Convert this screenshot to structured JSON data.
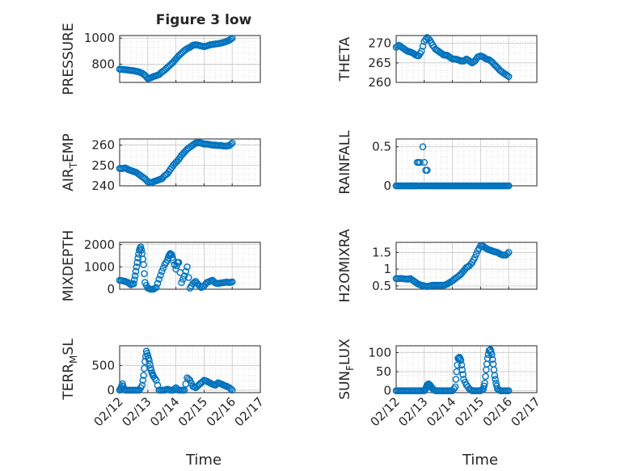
{
  "figure": {
    "title": "Figure 3 low",
    "xlabel_left": "Time",
    "xlabel_right": "Time",
    "x_tick_labels": [
      "02/12",
      "02/13",
      "02/14",
      "02/15",
      "02/16",
      "02/17"
    ]
  },
  "colors": {
    "marker": "#0072BD",
    "grid": "#d0d0d0",
    "axis": "#262626",
    "background": "#ffffff"
  },
  "chart_data": [
    {
      "id": "pressure",
      "type": "scatter",
      "ylabel": "PRESSURE",
      "xlim": [
        0,
        5
      ],
      "ylim": [
        660,
        1020
      ],
      "yticks": [
        800,
        1000
      ],
      "grid": true,
      "x": [
        0.0,
        0.1,
        0.2,
        0.3,
        0.4,
        0.5,
        0.6,
        0.7,
        0.8,
        0.9,
        1.0,
        1.1,
        1.2,
        1.3,
        1.4,
        1.5,
        1.6,
        1.7,
        1.8,
        1.9,
        2.0,
        2.1,
        2.2,
        2.3,
        2.4,
        2.5,
        2.6,
        2.7,
        2.8,
        2.9,
        3.0,
        3.1,
        3.2,
        3.3,
        3.4,
        3.5,
        3.6,
        3.7,
        3.8,
        3.9,
        4.0
      ],
      "y": [
        762,
        760,
        758,
        755,
        752,
        750,
        745,
        740,
        730,
        715,
        690,
        695,
        705,
        712,
        720,
        740,
        755,
        775,
        795,
        815,
        840,
        865,
        885,
        905,
        920,
        930,
        945,
        950,
        945,
        940,
        935,
        940,
        948,
        952,
        955,
        958,
        962,
        968,
        975,
        985,
        1000
      ]
    },
    {
      "id": "theta",
      "type": "scatter",
      "ylabel": "THETA",
      "xlim": [
        0,
        5
      ],
      "ylim": [
        260,
        272
      ],
      "yticks": [
        260,
        265,
        270
      ],
      "grid": true,
      "x": [
        0.0,
        0.1,
        0.2,
        0.3,
        0.4,
        0.5,
        0.6,
        0.7,
        0.8,
        0.9,
        1.0,
        1.1,
        1.2,
        1.3,
        1.4,
        1.5,
        1.6,
        1.7,
        1.8,
        1.9,
        2.0,
        2.1,
        2.2,
        2.3,
        2.4,
        2.5,
        2.6,
        2.7,
        2.8,
        2.9,
        3.0,
        3.1,
        3.2,
        3.3,
        3.4,
        3.5,
        3.6,
        3.7,
        3.8,
        3.9,
        4.0
      ],
      "y": [
        269,
        269.5,
        269,
        268.5,
        268,
        267.8,
        267.5,
        267,
        266.8,
        268,
        270.5,
        271.5,
        270.8,
        269.5,
        268.5,
        268,
        267.5,
        267,
        267,
        266.5,
        266,
        266,
        265.8,
        265.5,
        265.5,
        266,
        265.5,
        265,
        265.5,
        266.5,
        266.8,
        266.5,
        266,
        265.8,
        265.3,
        264.5,
        263.8,
        263,
        262.5,
        262,
        261.5
      ]
    },
    {
      "id": "air_temp",
      "type": "scatter",
      "ylabel": "AIR_TEMP",
      "ylabel_display": [
        "AIR",
        "T",
        "EMP"
      ],
      "xlim": [
        0,
        5
      ],
      "ylim": [
        240,
        263
      ],
      "yticks": [
        240,
        250,
        260
      ],
      "grid": true,
      "x": [
        0.0,
        0.1,
        0.2,
        0.3,
        0.4,
        0.5,
        0.6,
        0.7,
        0.8,
        0.9,
        1.0,
        1.1,
        1.2,
        1.3,
        1.4,
        1.5,
        1.6,
        1.7,
        1.8,
        1.9,
        2.0,
        2.1,
        2.2,
        2.3,
        2.4,
        2.5,
        2.6,
        2.7,
        2.8,
        2.9,
        3.0,
        3.1,
        3.2,
        3.3,
        3.4,
        3.5,
        3.6,
        3.7,
        3.8,
        3.9,
        4.0
      ],
      "y": [
        248.5,
        248.5,
        248.8,
        248,
        247.5,
        247,
        246.5,
        245.5,
        244.5,
        243.5,
        242,
        241.5,
        242,
        242.5,
        243,
        243.5,
        245,
        246,
        248,
        250,
        251.5,
        253,
        255,
        256.5,
        258,
        259,
        260,
        261,
        261.2,
        261,
        260.5,
        260.5,
        260.3,
        260,
        260,
        259.8,
        259.8,
        259.5,
        259.5,
        259.8,
        261
      ]
    },
    {
      "id": "rainfall",
      "type": "scatter",
      "ylabel": "RAINFALL",
      "xlim": [
        0,
        5
      ],
      "ylim": [
        0,
        0.6
      ],
      "yticks": [
        0,
        0.5
      ],
      "grid": true,
      "x": [
        0.0,
        0.1,
        0.2,
        0.3,
        0.4,
        0.5,
        0.6,
        0.7,
        0.75,
        0.8,
        0.85,
        0.9,
        0.95,
        1.0,
        1.05,
        1.1,
        1.2,
        1.3,
        1.4,
        1.5,
        1.6,
        1.7,
        1.8,
        1.9,
        2.0,
        2.1,
        2.2,
        2.3,
        2.4,
        2.5,
        2.6,
        2.7,
        2.8,
        2.9,
        3.0,
        3.1,
        3.2,
        3.3,
        3.4,
        3.5,
        3.6,
        3.7,
        3.8,
        3.9,
        4.0
      ],
      "y": [
        0,
        0,
        0,
        0,
        0,
        0,
        0,
        0,
        0.3,
        0.3,
        0.3,
        0,
        0.5,
        0.3,
        0.2,
        0.2,
        0,
        0,
        0,
        0,
        0,
        0,
        0,
        0,
        0,
        0,
        0,
        0,
        0,
        0,
        0,
        0,
        0,
        0,
        0,
        0,
        0,
        0,
        0,
        0,
        0,
        0,
        0,
        0,
        0
      ]
    },
    {
      "id": "mixdepth",
      "type": "scatter",
      "ylabel": "MIXDEPTH",
      "xlim": [
        0,
        5
      ],
      "ylim": [
        0,
        2100
      ],
      "yticks": [
        0,
        1000,
        2000
      ],
      "grid": true,
      "x": [
        0.0,
        0.1,
        0.2,
        0.3,
        0.4,
        0.5,
        0.55,
        0.6,
        0.65,
        0.7,
        0.75,
        0.8,
        0.85,
        0.9,
        1.0,
        1.1,
        1.2,
        1.3,
        1.4,
        1.5,
        1.6,
        1.7,
        1.75,
        1.8,
        1.85,
        1.9,
        2.0,
        2.05,
        2.1,
        2.2,
        2.3,
        2.4,
        2.5,
        2.6,
        2.7,
        2.8,
        2.9,
        3.0,
        3.1,
        3.2,
        3.3,
        3.4,
        3.5,
        3.6,
        3.7,
        3.8,
        3.9,
        4.0
      ],
      "y": [
        400,
        380,
        350,
        300,
        200,
        250,
        600,
        1000,
        1400,
        1750,
        1900,
        1600,
        1100,
        300,
        50,
        0,
        0,
        80,
        450,
        800,
        1100,
        1300,
        1500,
        1600,
        1550,
        1300,
        900,
        1200,
        1200,
        300,
        600,
        1000,
        50,
        250,
        350,
        200,
        80,
        150,
        300,
        350,
        400,
        280,
        260,
        280,
        300,
        320,
        300,
        330
      ]
    },
    {
      "id": "h2omixra",
      "type": "scatter",
      "ylabel": "H2OMIXRA",
      "xlim": [
        0,
        5
      ],
      "ylim": [
        0.4,
        1.8
      ],
      "yticks": [
        0.5,
        1,
        1.5
      ],
      "grid": true,
      "x": [
        0.0,
        0.1,
        0.2,
        0.3,
        0.4,
        0.5,
        0.6,
        0.7,
        0.8,
        0.9,
        1.0,
        1.1,
        1.2,
        1.3,
        1.4,
        1.5,
        1.6,
        1.7,
        1.8,
        1.9,
        2.0,
        2.1,
        2.2,
        2.3,
        2.4,
        2.5,
        2.6,
        2.7,
        2.8,
        2.9,
        3.0,
        3.1,
        3.2,
        3.3,
        3.4,
        3.5,
        3.6,
        3.7,
        3.8,
        3.9,
        4.0
      ],
      "y": [
        0.72,
        0.72,
        0.72,
        0.71,
        0.7,
        0.72,
        0.66,
        0.6,
        0.55,
        0.52,
        0.5,
        0.48,
        0.5,
        0.52,
        0.52,
        0.52,
        0.52,
        0.52,
        0.55,
        0.6,
        0.65,
        0.72,
        0.78,
        0.85,
        0.95,
        1.05,
        1.1,
        1.2,
        1.35,
        1.55,
        1.7,
        1.68,
        1.62,
        1.58,
        1.55,
        1.52,
        1.5,
        1.45,
        1.42,
        1.42,
        1.5
      ]
    },
    {
      "id": "terr_msl",
      "type": "scatter",
      "ylabel": "TERR_MSL",
      "ylabel_display": [
        "TERR",
        "M",
        "SL"
      ],
      "xlim": [
        0,
        5
      ],
      "ylim": [
        -50,
        900
      ],
      "yticks": [
        0,
        500
      ],
      "grid": true,
      "x": [
        0.0,
        0.05,
        0.1,
        0.15,
        0.2,
        0.3,
        0.4,
        0.5,
        0.6,
        0.7,
        0.8,
        0.85,
        0.9,
        0.95,
        1.0,
        1.05,
        1.1,
        1.15,
        1.2,
        1.3,
        1.4,
        1.5,
        1.6,
        1.7,
        1.8,
        1.9,
        2.0,
        2.1,
        2.2,
        2.3,
        2.4,
        2.5,
        2.6,
        2.7,
        2.8,
        2.9,
        3.0,
        3.1,
        3.2,
        3.3,
        3.4,
        3.5,
        3.6,
        3.7,
        3.8,
        3.9,
        4.0
      ],
      "y": [
        0,
        50,
        130,
        20,
        0,
        0,
        0,
        0,
        0,
        0,
        100,
        300,
        580,
        790,
        700,
        600,
        450,
        350,
        280,
        200,
        0,
        0,
        0,
        20,
        0,
        0,
        50,
        0,
        0,
        0,
        250,
        200,
        80,
        50,
        100,
        150,
        200,
        180,
        150,
        120,
        100,
        150,
        130,
        100,
        80,
        50,
        0
      ]
    },
    {
      "id": "sun_flux",
      "type": "scatter",
      "ylabel": "SUN_FLUX",
      "ylabel_display": [
        "SUN",
        "F",
        "LUX"
      ],
      "xlim": [
        0,
        5
      ],
      "ylim": [
        -5,
        118
      ],
      "yticks": [
        0,
        50,
        100
      ],
      "grid": true,
      "x": [
        0.0,
        0.1,
        0.2,
        0.3,
        0.4,
        0.5,
        0.6,
        0.7,
        0.8,
        0.9,
        1.0,
        1.05,
        1.1,
        1.15,
        1.2,
        1.25,
        1.3,
        1.4,
        1.5,
        1.6,
        1.7,
        1.8,
        1.9,
        2.0,
        2.1,
        2.15,
        2.2,
        2.25,
        2.3,
        2.35,
        2.4,
        2.5,
        2.6,
        2.7,
        2.8,
        2.9,
        3.0,
        3.1,
        3.15,
        3.2,
        3.25,
        3.3,
        3.35,
        3.4,
        3.45,
        3.5,
        3.55,
        3.6,
        3.7,
        3.8,
        3.9,
        4.0
      ],
      "y": [
        0,
        0,
        0,
        0,
        0,
        0,
        0,
        0,
        0,
        0,
        0,
        5,
        15,
        18,
        15,
        10,
        5,
        0,
        0,
        0,
        0,
        0,
        0,
        0,
        10,
        50,
        85,
        88,
        80,
        55,
        30,
        15,
        5,
        0,
        0,
        0,
        0,
        5,
        20,
        55,
        85,
        105,
        108,
        95,
        70,
        40,
        20,
        5,
        0,
        0,
        0,
        0
      ]
    }
  ]
}
